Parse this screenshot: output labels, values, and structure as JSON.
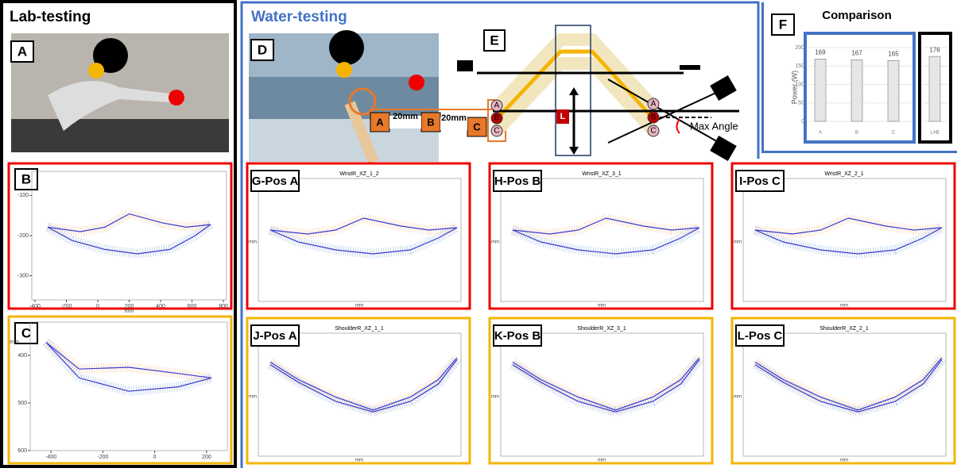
{
  "lab_title": "Lab-testing",
  "water_title": "Water-testing",
  "panel_letters": {
    "A": "A",
    "B": "B",
    "C": "C",
    "D": "D",
    "E": "E"
  },
  "diagram": {
    "positions": [
      "A",
      "B",
      "C"
    ],
    "gaps": [
      "20mm",
      "20mm"
    ],
    "circles": [
      "A",
      "B",
      "C"
    ],
    "circles_right": [
      "A",
      "B",
      "C"
    ],
    "lever": "L",
    "max_angle": "Max Angle"
  },
  "plot_b": {
    "xlabel": "mm",
    "xticks": [
      -400,
      -200,
      0,
      200,
      400,
      600,
      800
    ],
    "xlim": [
      -420,
      820
    ],
    "yticks": [
      -100,
      -200,
      -300
    ],
    "ylim": [
      -40,
      -360
    ]
  },
  "plot_c": {
    "ylabel": "mm",
    "xticks": [
      -400,
      -200,
      0,
      200
    ],
    "xlim": [
      -480,
      280
    ],
    "yticks": [
      400,
      500,
      600
    ],
    "ylim": [
      330,
      600
    ]
  },
  "plots": [
    {
      "label": "G-Pos A",
      "title": "WristR_XZ_1_2",
      "xlabel": "mm",
      "ylabel": "mm"
    },
    {
      "label": "H-Pos B",
      "title": "WristR_XZ_3_1",
      "xlabel": "mm",
      "ylabel": "mm"
    },
    {
      "label": "I-Pos C",
      "title": "WristR_XZ_2_1",
      "xlabel": "mm",
      "ylabel": "mm"
    },
    {
      "label": "J-Pos A",
      "title": "ShoulderR_XZ_1_1",
      "xlabel": "mm",
      "ylabel": "mm"
    },
    {
      "label": "K-Pos B",
      "title": "ShoulderR_XZ_3_1",
      "xlabel": "mm",
      "ylabel": "mm"
    },
    {
      "label": "L-Pos C",
      "title": "ShoulderR_XZ_2_1",
      "xlabel": "mm",
      "ylabel": "mm"
    }
  ],
  "chart_data": {
    "type": "bar",
    "letter": "F",
    "title": "Comparison",
    "ylabel": "Power (W)",
    "categories": [
      "A",
      "B",
      "C",
      "LAB"
    ],
    "values": [
      169,
      167,
      165,
      176
    ],
    "color": "#e6e6e6",
    "ylim": [
      0,
      200
    ],
    "yticks": [
      0,
      50,
      100,
      150,
      200
    ],
    "grid": true
  }
}
